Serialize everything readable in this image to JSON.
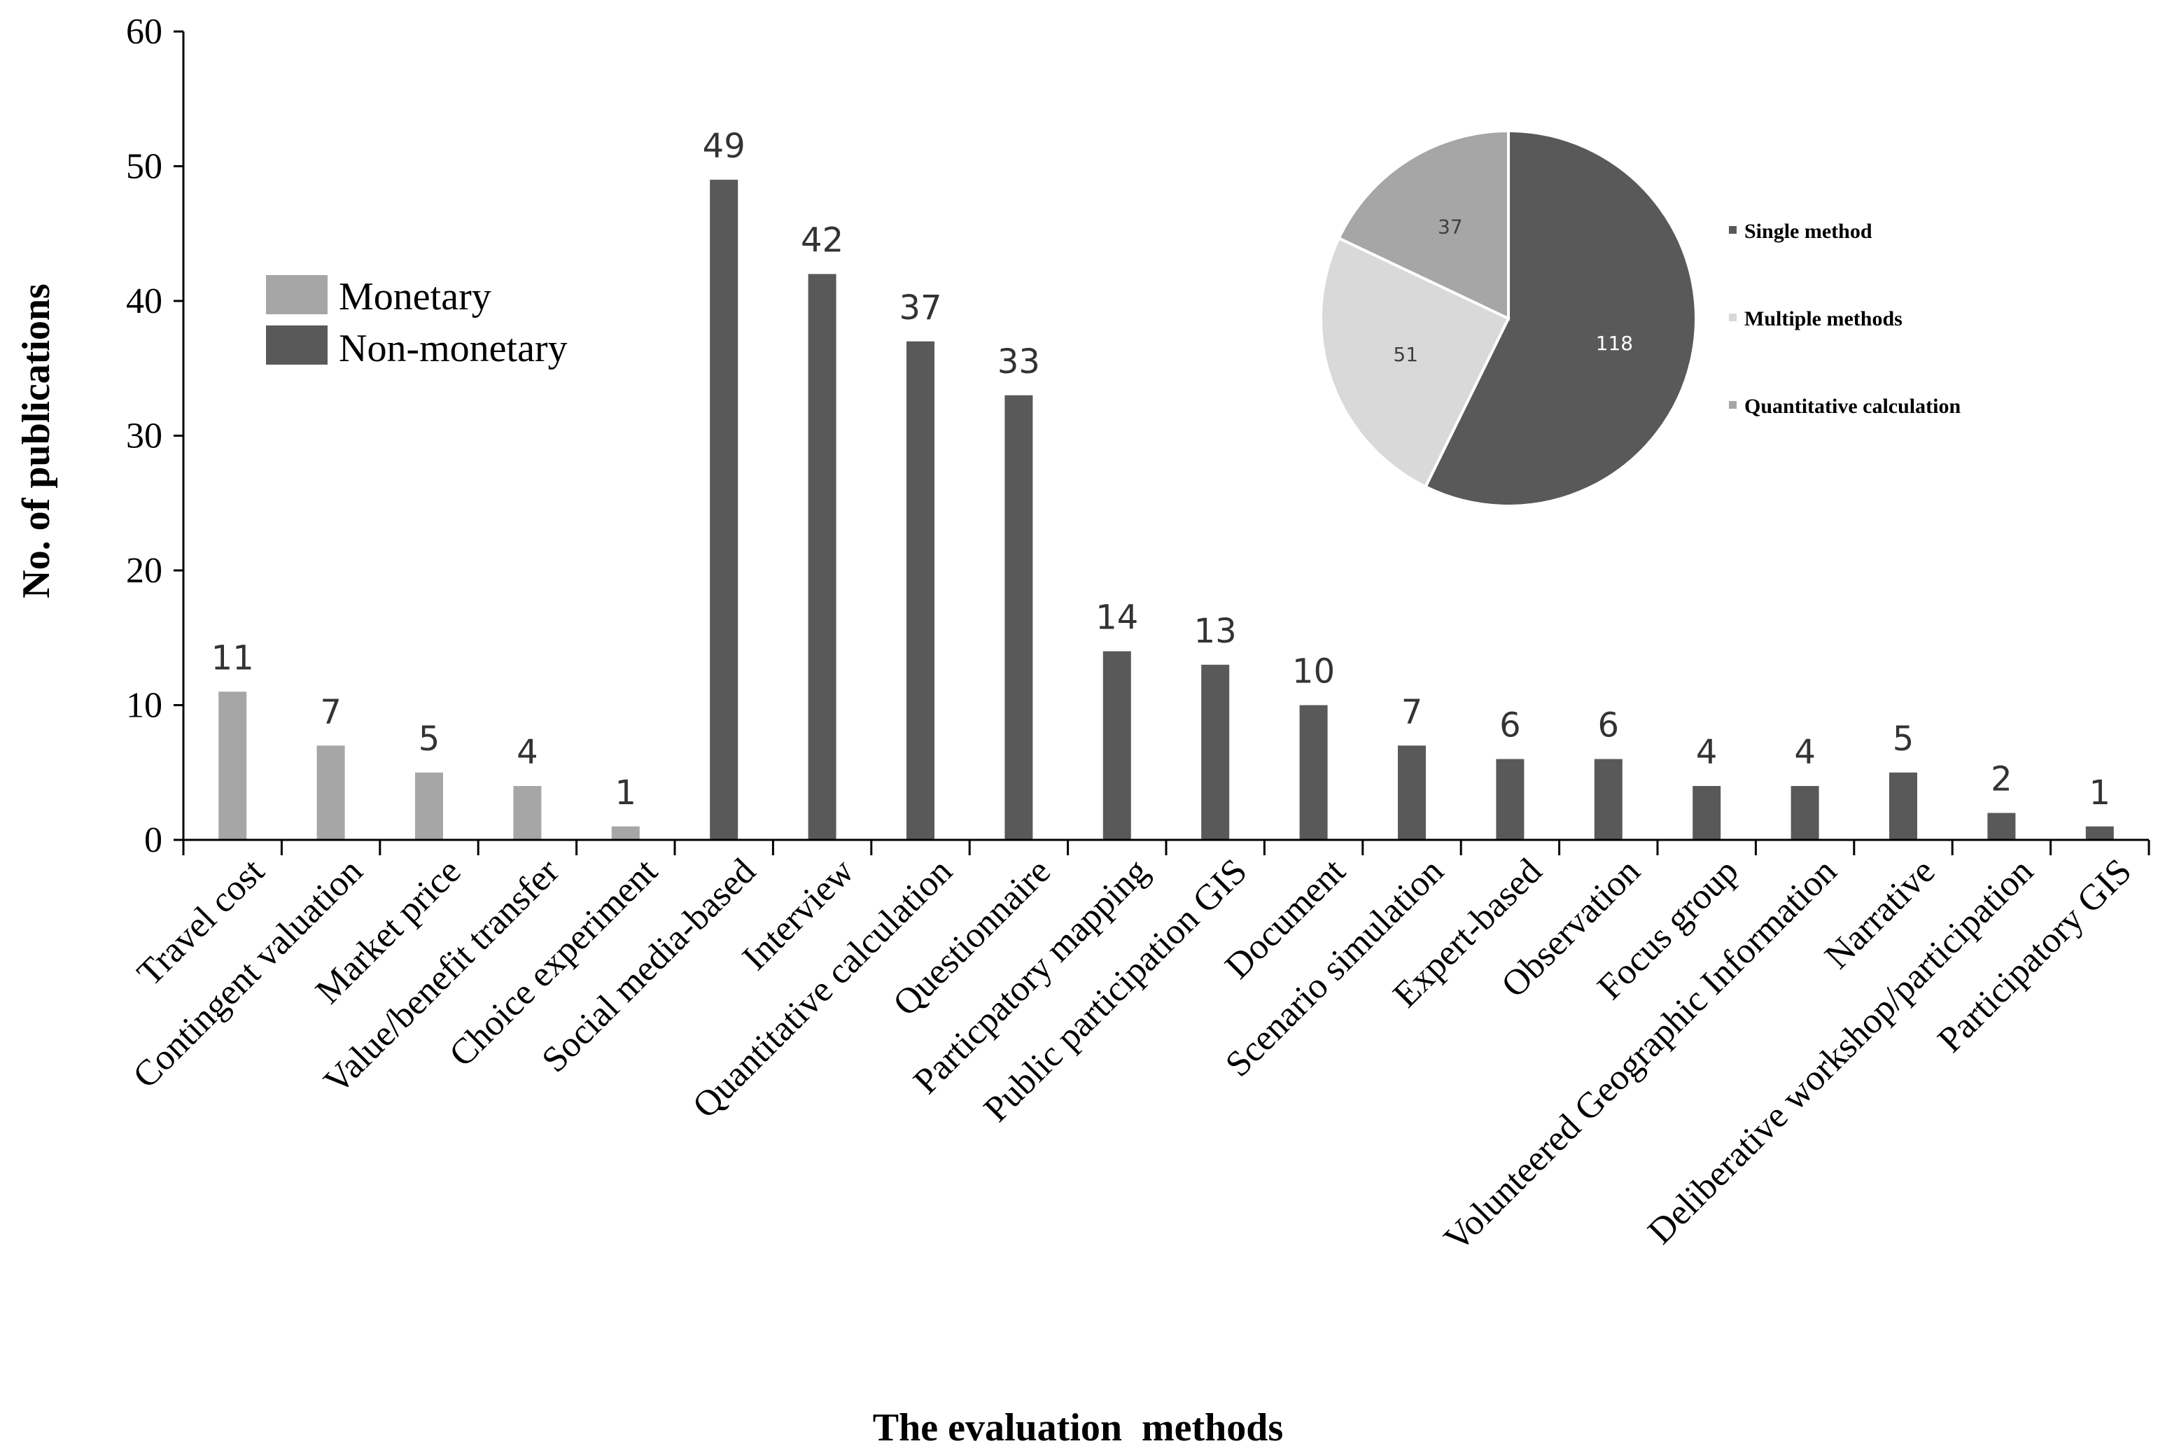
{
  "chart_data": [
    {
      "type": "bar",
      "title": "",
      "xlabel": "The evaluation  methods",
      "ylabel": "No. of publications",
      "ylim": [
        0,
        60
      ],
      "yticks": [
        0,
        10,
        20,
        30,
        40,
        50,
        60
      ],
      "grid": false,
      "legend_position": "top-left",
      "series": [
        {
          "name": "Monetary",
          "color": "#a6a6a6"
        },
        {
          "name": "Non-monetary",
          "color": "#595959"
        }
      ],
      "categories": [
        "Travel cost",
        "Contingent valuation",
        "Market price",
        "Value/benefit transfer",
        "Choice experiment",
        "Social media-based",
        "Interview",
        "Quantitative calculation",
        "Questionnaire",
        "Particpatory mapping",
        "Public participation GIS",
        "Document",
        "Scenario simulation",
        "Expert-based",
        "Observation",
        "Focus group",
        "Volunteered Geographic Information",
        "Narrative",
        "Deliberative workshop/participation",
        "Participatory GIS"
      ],
      "values": [
        11,
        7,
        5,
        4,
        1,
        49,
        42,
        37,
        33,
        14,
        13,
        10,
        7,
        6,
        6,
        4,
        4,
        5,
        2,
        1
      ],
      "value_labels": [
        "11",
        "7",
        "5",
        "4",
        "1",
        "49",
        "42",
        "37",
        "33",
        "14",
        "13",
        "10",
        "7",
        "6",
        "6",
        "4",
        "4",
        "5",
        "2",
        "1"
      ],
      "bar_series": [
        "Monetary",
        "Monetary",
        "Monetary",
        "Monetary",
        "Monetary",
        "Non-monetary",
        "Non-monetary",
        "Non-monetary",
        "Non-monetary",
        "Non-monetary",
        "Non-monetary",
        "Non-monetary",
        "Non-monetary",
        "Non-monetary",
        "Non-monetary",
        "Non-monetary",
        "Non-monetary",
        "Non-monetary",
        "Non-monetary",
        "Non-monetary"
      ]
    },
    {
      "type": "pie",
      "title": "",
      "legend_position": "right",
      "slices": [
        {
          "label": "Single method",
          "value": 118,
          "color": "#595959",
          "text_color": "#ffffff"
        },
        {
          "label": "Multiple methods",
          "value": 51,
          "color": "#d9d9d9",
          "text_color": "#404040"
        },
        {
          "label": "Quantitative calculation",
          "value": 37,
          "color": "#a6a6a6",
          "text_color": "#404040"
        }
      ]
    }
  ]
}
